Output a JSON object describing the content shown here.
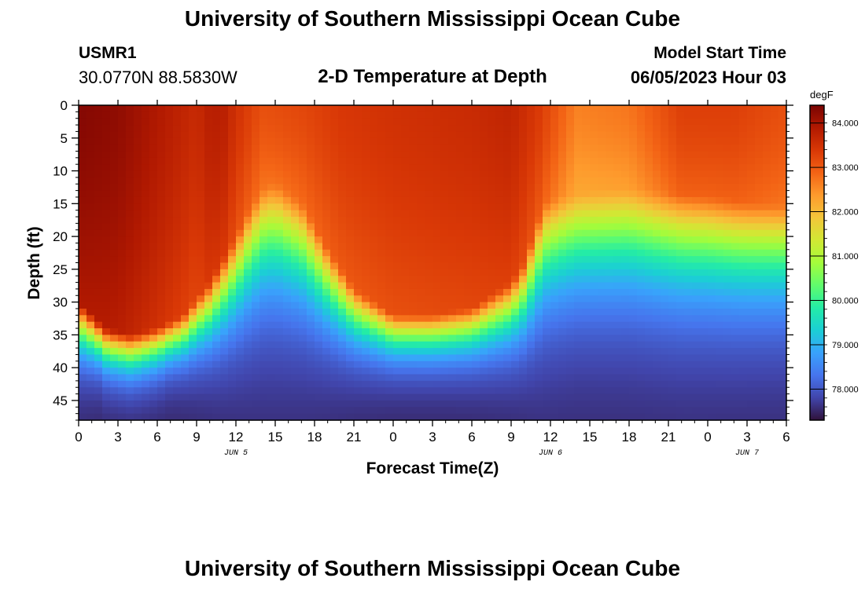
{
  "header": {
    "title": "University of Southern Mississippi Ocean Cube",
    "station_id": "USMR1",
    "station_location": "30.0770N  88.5830W",
    "plot_title": "2-D Temperature at Depth",
    "model_start_label": "Model Start Time",
    "model_start_value": "06/05/2023 Hour 03"
  },
  "footer": {
    "title": "University of Southern Mississippi Ocean Cube"
  },
  "colors": {
    "colormap": [
      "#30123b",
      "#4145ab",
      "#4675ed",
      "#39a2fc",
      "#1bcfd4",
      "#24eca6",
      "#61fc6c",
      "#a4fc3b",
      "#d1e834",
      "#f3c63a",
      "#fe9b2d",
      "#f36315",
      "#d93806",
      "#b11901",
      "#7a0403"
    ]
  },
  "chart_data": {
    "type": "heatmap",
    "title": "2-D Temperature at Depth",
    "xlabel": "Forecast Time(Z)",
    "ylabel": "Depth (ft)",
    "x_ticks": [
      "0",
      "3",
      "6",
      "9",
      "12",
      "15",
      "18",
      "21",
      "0",
      "3",
      "6",
      "9",
      "12",
      "15",
      "18",
      "21",
      "0",
      "3",
      "6"
    ],
    "x_range_hours": [
      0,
      54
    ],
    "date_labels": [
      {
        "label": "JUN 5",
        "hour": 12
      },
      {
        "label": "JUN 6",
        "hour": 36
      },
      {
        "label": "JUN 7",
        "hour": 51
      }
    ],
    "y_ticks": [
      0,
      5,
      10,
      15,
      20,
      25,
      30,
      35,
      40,
      45
    ],
    "y_range_ft": [
      0,
      48
    ],
    "colorbar": {
      "unit": "degF",
      "ticks": [
        "84.000",
        "83.000",
        "82.000",
        "81.000",
        "80.000",
        "79.000",
        "78.000"
      ],
      "range": [
        77.3,
        84.4
      ]
    },
    "mixed_layer_depth": {
      "hours": [
        0,
        2,
        4,
        6,
        8,
        10,
        12,
        13,
        14,
        15,
        17,
        19,
        21,
        24,
        27,
        30,
        33,
        34,
        35,
        35.5,
        37,
        39,
        42,
        45,
        48,
        51,
        54
      ],
      "depth_ft": [
        33,
        37,
        38,
        37,
        35,
        30,
        23,
        19,
        16,
        15,
        18,
        25,
        31,
        35,
        35,
        34,
        30,
        27,
        21,
        18,
        17,
        16.5,
        16,
        16.5,
        17,
        18,
        18.5
      ]
    },
    "surface_temperature": {
      "hours": [
        0,
        3,
        6,
        9,
        10,
        11,
        12,
        14,
        17,
        20,
        24,
        30,
        33,
        35,
        38,
        42,
        46,
        50,
        54
      ],
      "degF": [
        84.3,
        84.2,
        83.9,
        83.6,
        83.8,
        83.8,
        83.5,
        83.1,
        83.2,
        83.4,
        83.5,
        83.6,
        83.7,
        83.4,
        82.6,
        82.7,
        83.3,
        83.3,
        83.1
      ]
    },
    "bottom_temperature_degF": 77.5
  }
}
